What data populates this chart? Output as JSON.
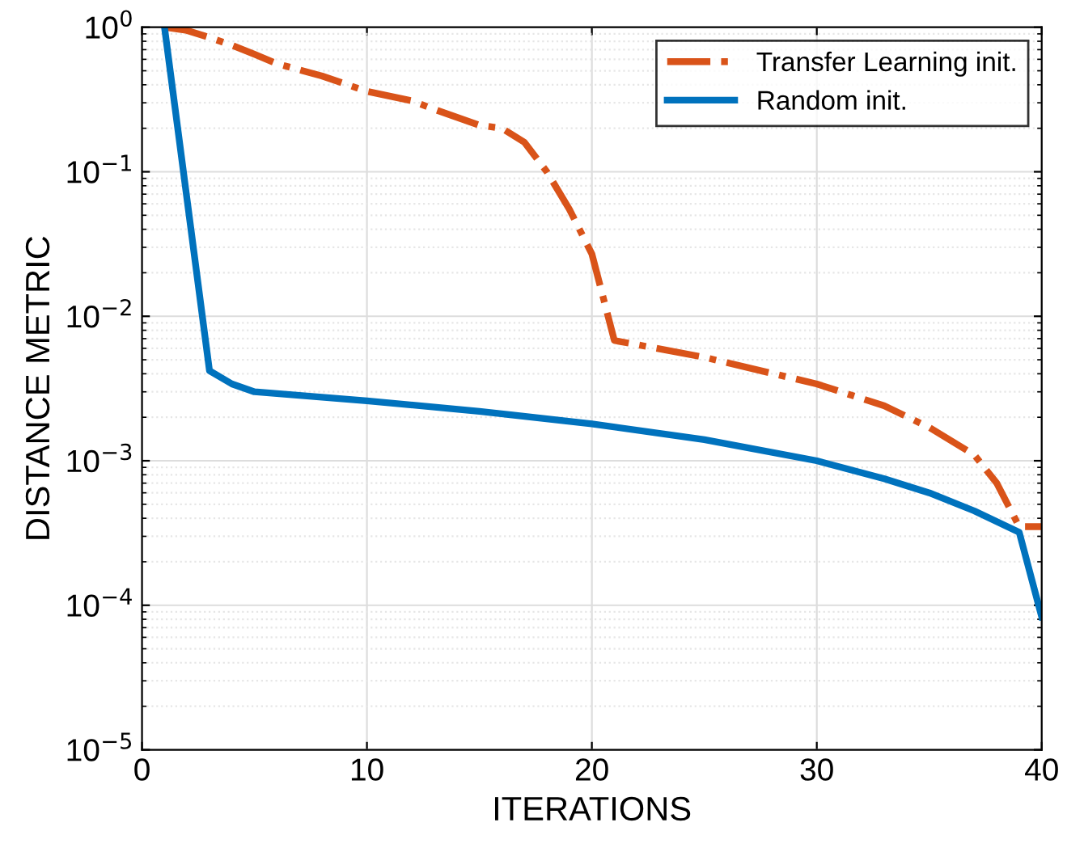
{
  "chart_data": {
    "type": "line",
    "xlabel": "ITERATIONS",
    "ylabel": "DISTANCE METRIC",
    "log": "y",
    "xlim": [
      0,
      40
    ],
    "xticks": [
      0,
      10,
      20,
      30,
      40
    ],
    "ylim": [
      1e-05,
      1
    ],
    "yticks": [
      {
        "value": 1e-05,
        "label": "10$^{−5}$"
      },
      {
        "value": 0.0001,
        "label": "10$^{−4}$"
      },
      {
        "value": 0.001,
        "label": "10$^{−3}$"
      },
      {
        "value": 0.01,
        "label": "10$^{−2}$"
      },
      {
        "value": 0.1,
        "label": "10$^{−1}$"
      },
      {
        "value": 1,
        "label": "10$^{0}$"
      }
    ],
    "grid": true,
    "legend": "top right",
    "series": [
      {
        "name": "Transfer Learning init.",
        "color": "#d95319",
        "line_style": "dashdot",
        "x": [
          1,
          2,
          3,
          4,
          5,
          6,
          8,
          10,
          12,
          13,
          15,
          16,
          17,
          18,
          19,
          20,
          21,
          25,
          30,
          33,
          35,
          37,
          38,
          39,
          40
        ],
        "values": [
          1.0,
          0.95,
          0.85,
          0.75,
          0.65,
          0.56,
          0.46,
          0.36,
          0.31,
          0.27,
          0.21,
          0.2,
          0.16,
          0.1,
          0.055,
          0.027,
          0.0068,
          0.0052,
          0.0034,
          0.0024,
          0.0017,
          0.0011,
          0.0007,
          0.00035,
          0.00035
        ]
      },
      {
        "name": "Random init.",
        "color": "#0072bd",
        "line_style": "solid",
        "x": [
          1,
          3,
          4,
          5,
          10,
          15,
          20,
          25,
          30,
          33,
          35,
          37,
          39,
          40
        ],
        "values": [
          1.0,
          0.0042,
          0.0034,
          0.003,
          0.0026,
          0.0022,
          0.0018,
          0.0014,
          0.001,
          0.00075,
          0.0006,
          0.00045,
          0.00032,
          8.3e-05
        ]
      }
    ]
  }
}
